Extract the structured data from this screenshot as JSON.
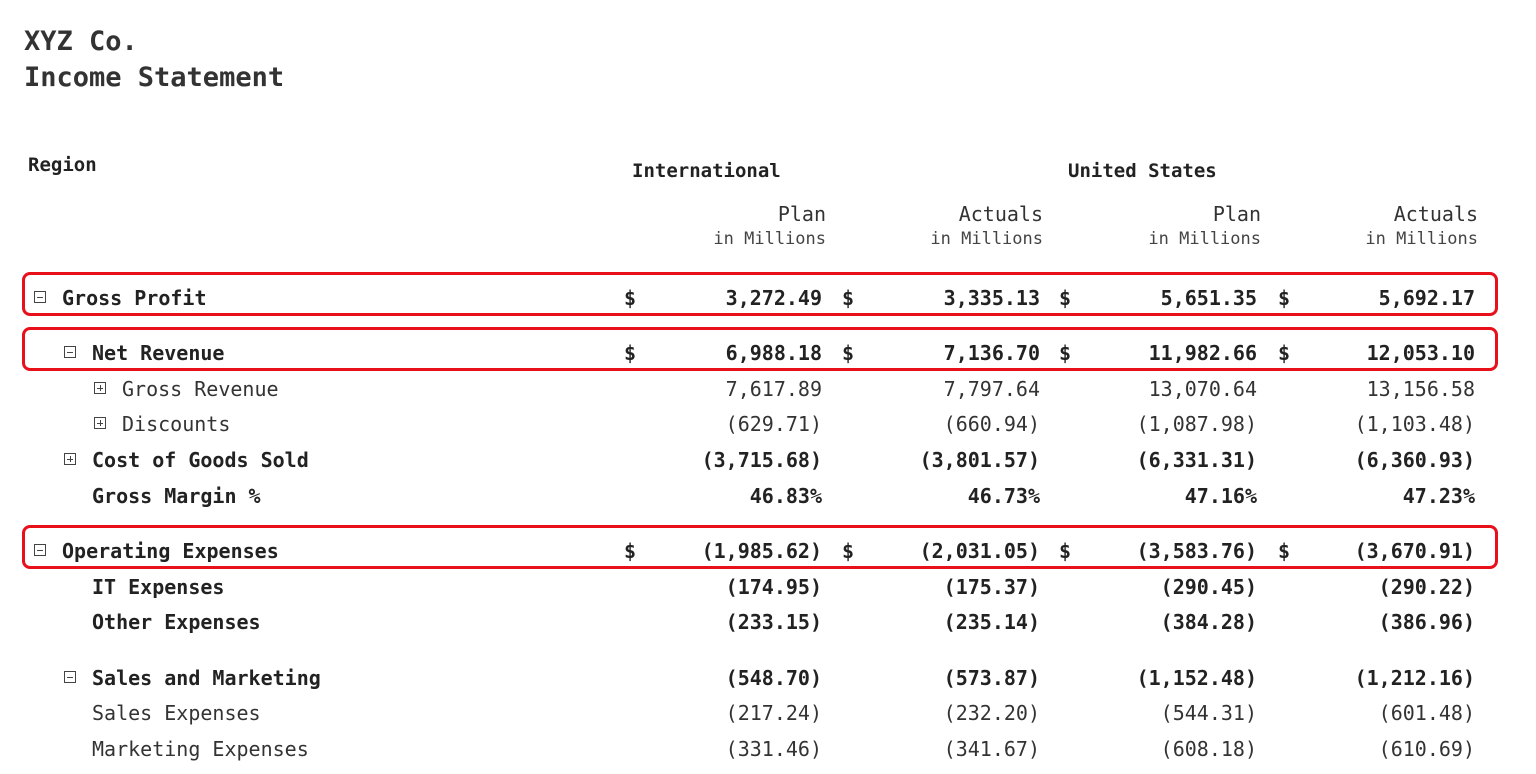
{
  "report": {
    "company": "XYZ Co.",
    "title": "Income Statement"
  },
  "header": {
    "region_label": "Region",
    "groups": [
      "International",
      "United States"
    ],
    "columns": [
      {
        "label": "Plan",
        "unit": "in Millions"
      },
      {
        "label": "Actuals",
        "unit": "in Millions"
      },
      {
        "label": "Plan",
        "unit": "in Millions"
      },
      {
        "label": "Actuals",
        "unit": "in Millions"
      }
    ]
  },
  "rows": [
    {
      "label": "Gross Profit",
      "toggle": "minus",
      "currency": "$",
      "values": [
        "3,272.49",
        "3,335.13",
        "5,651.35",
        "5,692.17"
      ],
      "highlighted": true
    },
    {
      "label": "Net Revenue",
      "toggle": "minus",
      "currency": "$",
      "values": [
        "6,988.18",
        "7,136.70",
        "11,982.66",
        "12,053.10"
      ],
      "highlighted": true
    },
    {
      "label": "Gross Revenue",
      "toggle": "plus",
      "currency": "",
      "values": [
        "7,617.89",
        "7,797.64",
        "13,070.64",
        "13,156.58"
      ],
      "highlighted": false
    },
    {
      "label": "Discounts",
      "toggle": "plus",
      "currency": "",
      "values": [
        "(629.71)",
        "(660.94)",
        "(1,087.98)",
        "(1,103.48)"
      ],
      "highlighted": false
    },
    {
      "label": "Cost of Goods Sold",
      "toggle": "plus",
      "currency": "",
      "values": [
        "(3,715.68)",
        "(3,801.57)",
        "(6,331.31)",
        "(6,360.93)"
      ],
      "highlighted": false
    },
    {
      "label": "Gross Margin %",
      "toggle": "",
      "currency": "",
      "values": [
        "46.83%",
        "46.73%",
        "47.16%",
        "47.23%"
      ],
      "highlighted": false
    },
    {
      "label": "Operating Expenses",
      "toggle": "minus",
      "currency": "$",
      "values": [
        "(1,985.62)",
        "(2,031.05)",
        "(3,583.76)",
        "(3,670.91)"
      ],
      "highlighted": true
    },
    {
      "label": "IT Expenses",
      "toggle": "",
      "currency": "",
      "values": [
        "(174.95)",
        "(175.37)",
        "(290.45)",
        "(290.22)"
      ],
      "highlighted": false
    },
    {
      "label": "Other Expenses",
      "toggle": "",
      "currency": "",
      "values": [
        "(233.15)",
        "(235.14)",
        "(384.28)",
        "(386.96)"
      ],
      "highlighted": false
    },
    {
      "label": "Sales and Marketing",
      "toggle": "minus",
      "currency": "",
      "values": [
        "(548.70)",
        "(573.87)",
        "(1,152.48)",
        "(1,212.16)"
      ],
      "highlighted": false
    },
    {
      "label": "Sales Expenses",
      "toggle": "",
      "currency": "",
      "values": [
        "(217.24)",
        "(232.20)",
        "(544.31)",
        "(601.48)"
      ],
      "highlighted": false
    },
    {
      "label": "Marketing Expenses",
      "toggle": "",
      "currency": "",
      "values": [
        "(331.46)",
        "(341.67)",
        "(608.18)",
        "(610.69)"
      ],
      "highlighted": false
    }
  ]
}
